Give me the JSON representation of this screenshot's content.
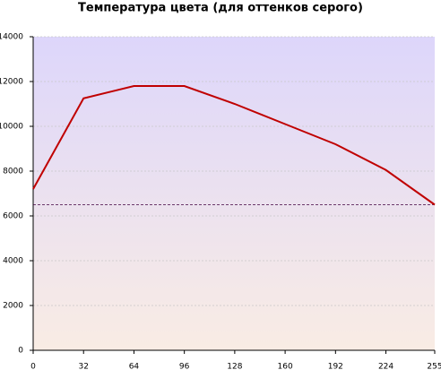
{
  "chart_data": {
    "type": "line",
    "title": "Температура цвета (для оттенков серого)",
    "x": [
      0,
      32,
      64,
      96,
      128,
      160,
      192,
      224,
      255
    ],
    "series": [
      {
        "color": "#c00000",
        "values": [
          7200,
          11250,
          11800,
          11800,
          11000,
          10100,
          9200,
          8050,
          6500
        ]
      }
    ],
    "reference_line": 6500,
    "reference_color": "#400040",
    "xlim": [
      0,
      255
    ],
    "xticks": [
      0,
      32,
      64,
      96,
      128,
      160,
      192,
      224,
      255
    ],
    "ylim": [
      0,
      14000
    ],
    "yticks": [
      0,
      2000,
      4000,
      6000,
      8000,
      10000,
      12000,
      14000
    ],
    "grid": true
  }
}
